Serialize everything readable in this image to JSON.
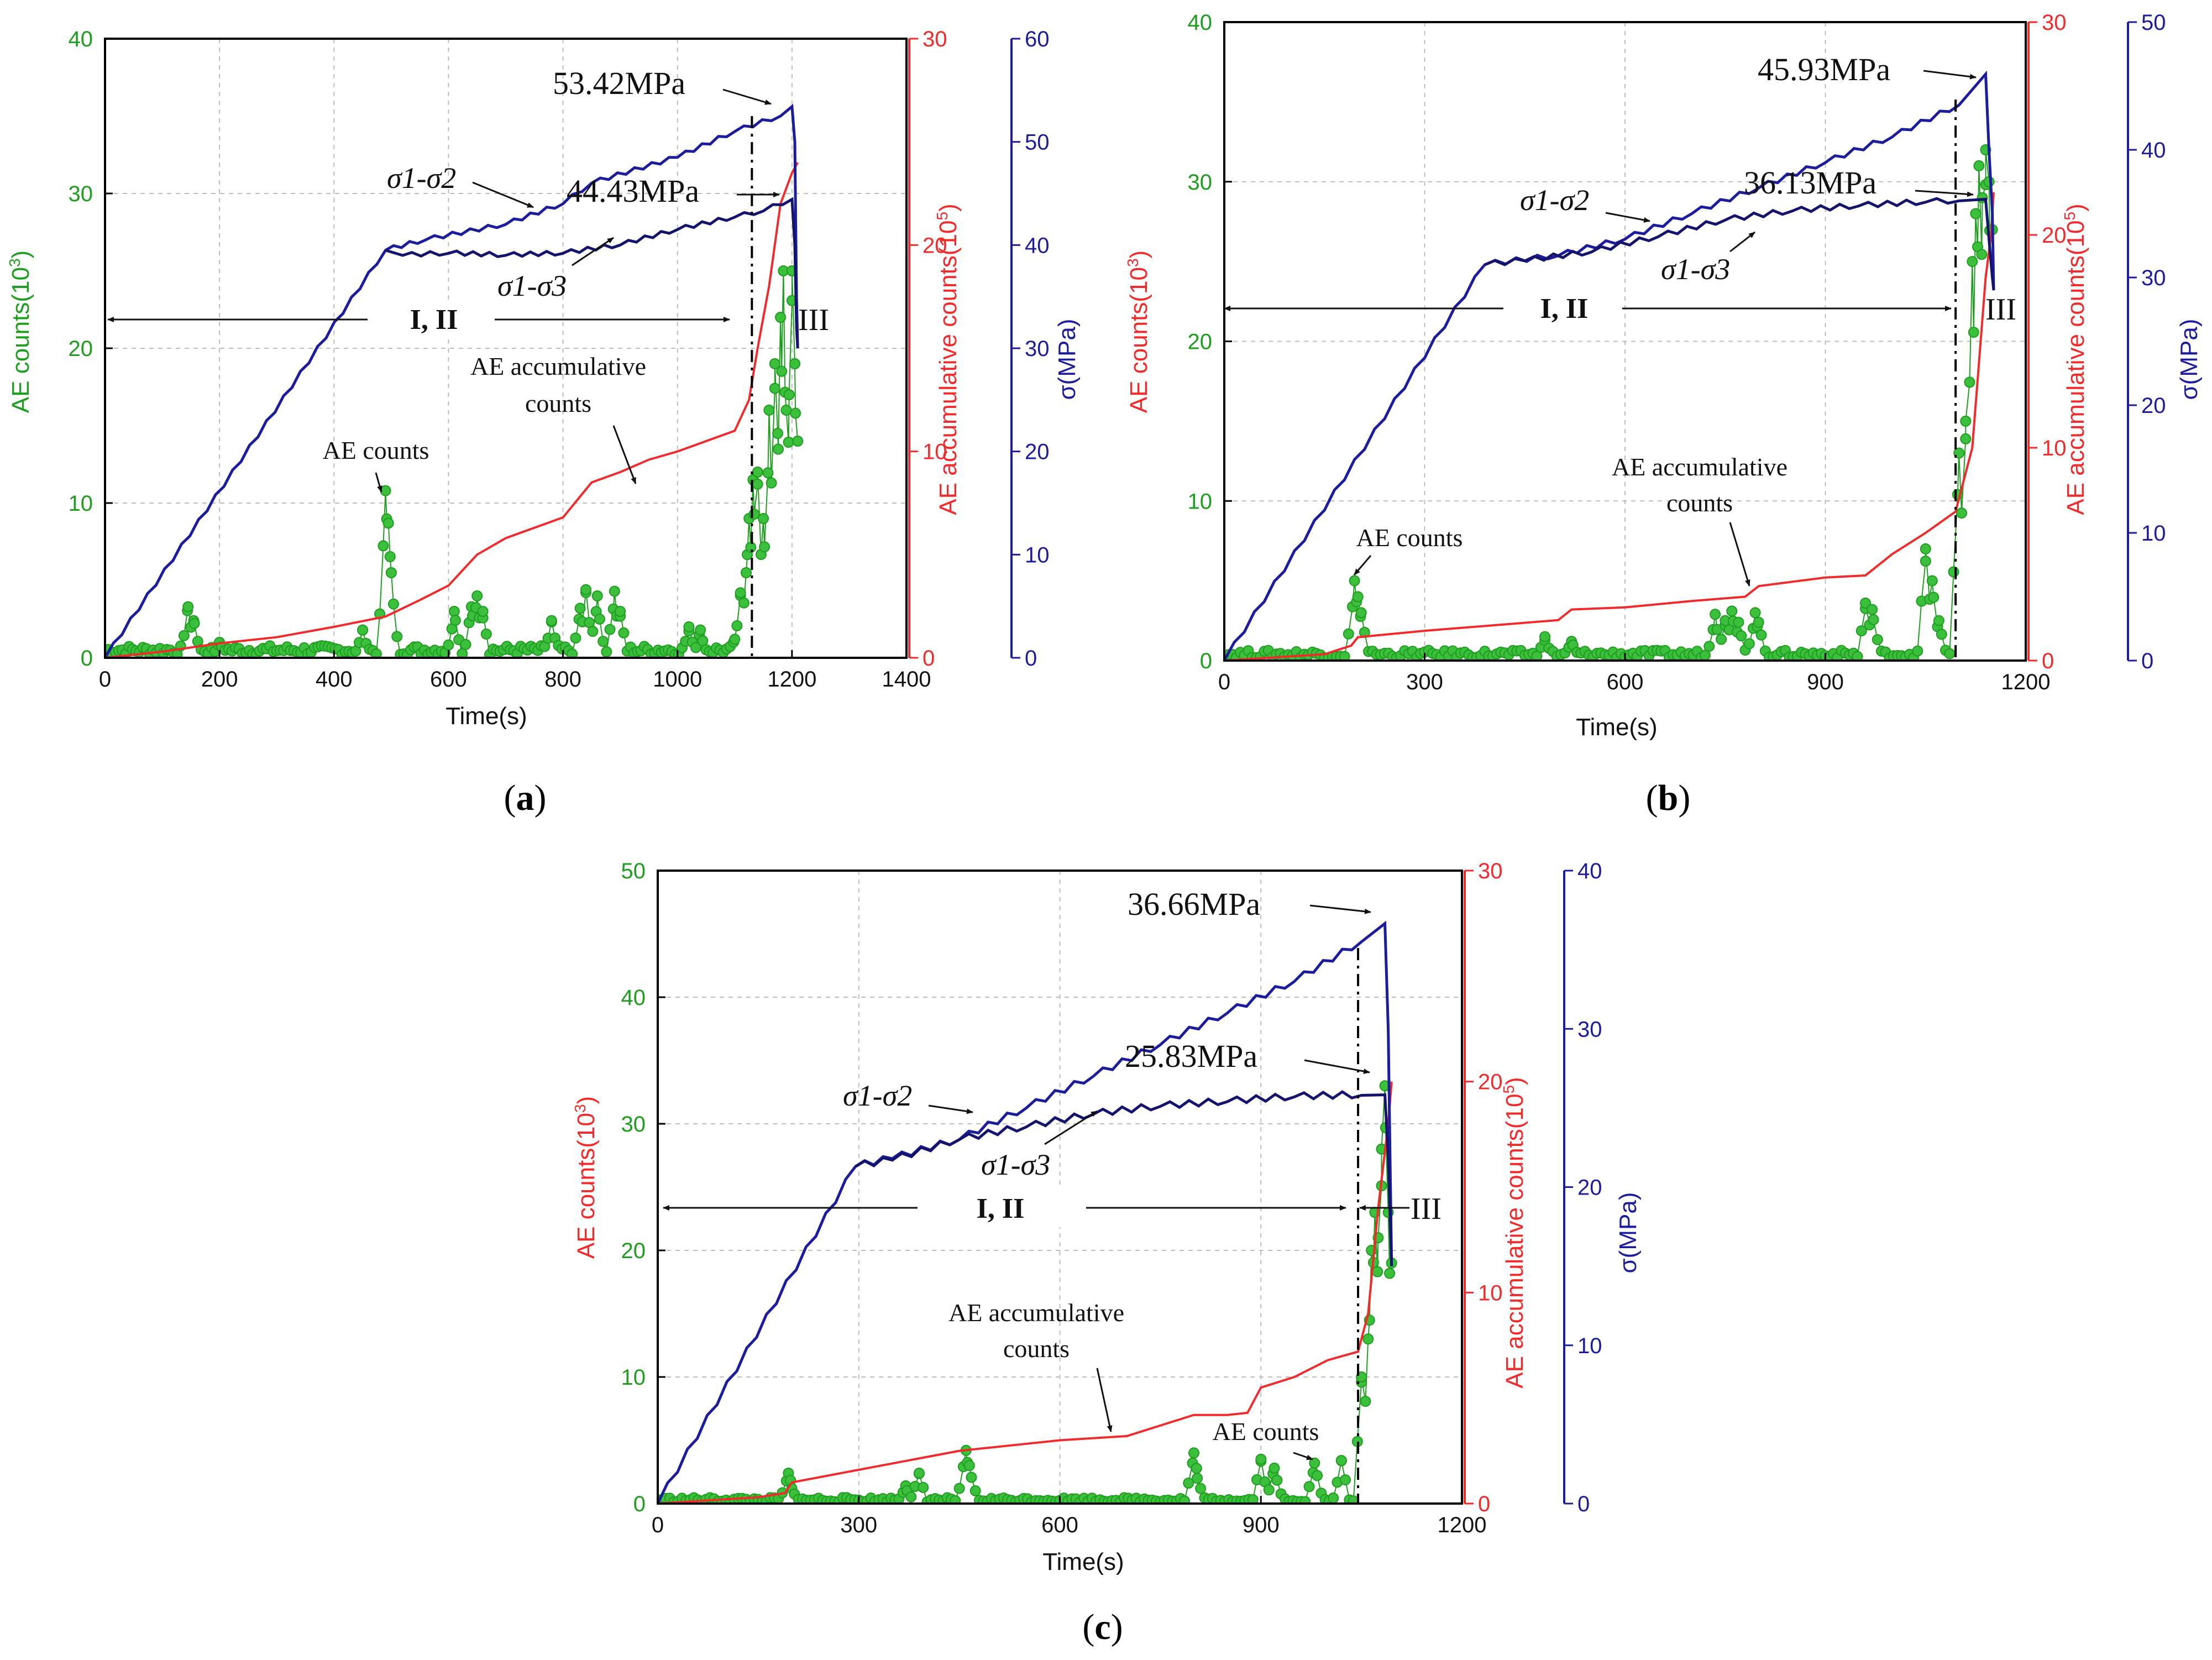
{
  "colors": {
    "ae_counts": "#1e9e1e",
    "ae_counts_fill": "#3cbf3c",
    "ae_accum": "#ef2b2b",
    "stress": "#1c1c9c",
    "stress_dark": "#14146e",
    "frame": "#000000",
    "grid": "#bdbdbd"
  },
  "chart_data": [
    {
      "id": "a",
      "type": "line",
      "caption_letter": "a",
      "xlabel": "Time(s)",
      "ylabel_left": "AE counts(10",
      "ylabel_left_color": "#1e9e1e",
      "ylabel_mid": "AE accumulative counts(10",
      "ylabel_right": "σ(MPa)",
      "x_ticks": [
        "0",
        "200",
        "400",
        "600",
        "800",
        "1000",
        "1200",
        "1400"
      ],
      "xlim": [
        0,
        1400
      ],
      "ylim_left": [
        0,
        40
      ],
      "yticks_left": [
        "0",
        "10",
        "20",
        "30",
        "40"
      ],
      "ylim_mid": [
        0,
        30
      ],
      "yticks_mid": [
        "0",
        "10",
        "20",
        "30"
      ],
      "ylim_right": [
        0,
        60
      ],
      "yticks_right": [
        "0",
        "10",
        "20",
        "30",
        "40",
        "50",
        "60"
      ],
      "divider_x": 1130,
      "phase_label_1": "I, II",
      "phase_label_2": "III",
      "peak1_label": "53.42MPa",
      "peak2_label": "44.43MPa",
      "label_s12": "σ1-σ2",
      "label_s13": "σ1-σ3",
      "label_accum_1": "AE accumulative",
      "label_accum_2": "counts",
      "label_counts": "AE counts",
      "series": [
        {
          "name": "σ1-σ2",
          "axis": "right",
          "x": [
            0,
            490,
            560,
            700,
            800,
            850,
            1000,
            1100,
            1180,
            1200,
            1205,
            1208,
            1210
          ],
          "y": [
            0,
            39.5,
            40.5,
            42,
            44,
            46,
            48.5,
            51,
            52.5,
            53.42,
            50,
            35,
            30
          ]
        },
        {
          "name": "σ1-σ3",
          "axis": "right",
          "x": [
            490,
            520,
            600,
            700,
            800,
            900,
            1000,
            1100,
            1150,
            1200,
            1205,
            1208,
            1210
          ],
          "y": [
            39.5,
            39,
            39.2,
            39,
            39.2,
            40,
            41.5,
            42.7,
            43.3,
            44.43,
            40,
            32,
            30
          ]
        },
        {
          "name": "AE accumulative counts",
          "axis": "mid",
          "x": [
            0,
            100,
            200,
            300,
            400,
            490,
            550,
            600,
            650,
            700,
            800,
            850,
            900,
            950,
            1000,
            1050,
            1100,
            1125,
            1140,
            1160,
            1180,
            1200,
            1210
          ],
          "y": [
            0,
            0.3,
            0.7,
            1,
            1.5,
            2,
            2.8,
            3.5,
            5,
            5.8,
            6.8,
            8.5,
            9,
            9.6,
            10,
            10.5,
            11,
            12.5,
            15,
            18,
            22,
            23.5,
            24
          ]
        },
        {
          "name": "AE counts",
          "axis": "left",
          "base": 0.5,
          "range": [
            0,
            1210
          ],
          "peaks": [
            [
              145,
              3.3
            ],
            [
              155,
              2.4
            ],
            [
              200,
              1
            ],
            [
              450,
              1.8
            ],
            [
              490,
              10.8
            ],
            [
              495,
              8.7
            ],
            [
              500,
              5.5
            ],
            [
              610,
              3
            ],
            [
              640,
              3.3
            ],
            [
              650,
              4
            ],
            [
              660,
              3
            ],
            [
              780,
              2.4
            ],
            [
              830,
              3.2
            ],
            [
              840,
              4.4
            ],
            [
              860,
              4
            ],
            [
              890,
              4.3
            ],
            [
              900,
              3
            ],
            [
              1020,
              2
            ],
            [
              1040,
              1.8
            ],
            [
              1100,
              1.2
            ],
            [
              1110,
              4.2
            ],
            [
              1120,
              5.5
            ],
            [
              1125,
              9
            ],
            [
              1132,
              11.5
            ],
            [
              1140,
              12
            ],
            [
              1150,
              9
            ],
            [
              1160,
              16
            ],
            [
              1170,
              19
            ],
            [
              1175,
              14.5
            ],
            [
              1180,
              22
            ],
            [
              1185,
              25
            ],
            [
              1190,
              16
            ],
            [
              1195,
              17
            ],
            [
              1200,
              25
            ],
            [
              1205,
              19
            ],
            [
              1210,
              14
            ]
          ]
        }
      ]
    },
    {
      "id": "b",
      "type": "line",
      "caption_letter": "b",
      "xlabel": "Time(s)",
      "ylabel_left": "AE counts(10",
      "ylabel_left_color": "#ef2b2b",
      "ylabel_mid": "AE accumulative counts(10",
      "ylabel_right": "σ(MPa)",
      "x_ticks": [
        "0",
        "300",
        "600",
        "900",
        "1200"
      ],
      "xlim": [
        0,
        1200
      ],
      "ylim_left": [
        0,
        40
      ],
      "yticks_left": [
        "0",
        "10",
        "20",
        "30",
        "40"
      ],
      "ylim_mid": [
        0,
        30
      ],
      "yticks_mid": [
        "0",
        "10",
        "20",
        "30"
      ],
      "ylim_right": [
        0,
        50
      ],
      "yticks_right": [
        "0",
        "10",
        "20",
        "30",
        "40",
        "50"
      ],
      "divider_x": 1095,
      "phase_label_1": "I, II",
      "phase_label_2": "III",
      "peak1_label": "45.93MPa",
      "peak2_label": "36.13MPa",
      "label_s12": "σ1-σ2",
      "label_s13": "σ1-σ3",
      "label_accum_1": "AE accumulative",
      "label_accum_2": "counts",
      "label_counts": "AE counts",
      "series": [
        {
          "name": "σ1-σ2",
          "axis": "right",
          "x": [
            0,
            390,
            500,
            600,
            700,
            800,
            900,
            1000,
            1100,
            1140,
            1145,
            1150,
            1152
          ],
          "y": [
            0,
            31,
            31.7,
            33,
            35,
            37,
            39,
            41,
            43.5,
            45.93,
            40,
            35,
            29
          ]
        },
        {
          "name": "σ1-σ3",
          "axis": "right",
          "x": [
            390,
            450,
            550,
            650,
            750,
            850,
            950,
            1050,
            1100,
            1140,
            1145,
            1150,
            1152
          ],
          "y": [
            31,
            31.3,
            32,
            33.2,
            34.5,
            35.2,
            35.6,
            35.9,
            36,
            36.13,
            33,
            30,
            29
          ]
        },
        {
          "name": "AE accumulative counts",
          "axis": "mid",
          "x": [
            0,
            150,
            190,
            200,
            300,
            500,
            520,
            600,
            700,
            780,
            800,
            900,
            960,
            1000,
            1050,
            1095,
            1120,
            1130,
            1140,
            1148,
            1152
          ],
          "y": [
            0,
            0.3,
            0.7,
            1.1,
            1.4,
            1.9,
            2.4,
            2.5,
            2.8,
            3,
            3.5,
            3.9,
            4,
            5,
            6,
            7,
            10,
            14,
            18,
            20,
            22
          ]
        },
        {
          "name": "AE counts",
          "axis": "left",
          "base": 0.4,
          "range": [
            0,
            1150
          ],
          "peaks": [
            [
              195,
              5
            ],
            [
              200,
              4
            ],
            [
              205,
              3
            ],
            [
              480,
              1.5
            ],
            [
              520,
              1.2
            ],
            [
              735,
              2.9
            ],
            [
              750,
              2.5
            ],
            [
              760,
              3.1
            ],
            [
              770,
              2.4
            ],
            [
              795,
              3
            ],
            [
              800,
              2.4
            ],
            [
              960,
              3.6
            ],
            [
              970,
              3.2
            ],
            [
              1050,
              7
            ],
            [
              1060,
              5
            ],
            [
              1070,
              2.5
            ],
            [
              1100,
              13
            ],
            [
              1110,
              15
            ],
            [
              1120,
              25
            ],
            [
              1125,
              28
            ],
            [
              1130,
              31
            ],
            [
              1135,
              29
            ],
            [
              1140,
              32
            ],
            [
              1145,
              30
            ],
            [
              1150,
              27
            ]
          ]
        }
      ]
    },
    {
      "id": "c",
      "type": "line",
      "caption_letter": "c",
      "xlabel": "Time(s)",
      "ylabel_left": "AE counts(10",
      "ylabel_left_color": "#ef2b2b",
      "ylabel_mid": "AE accumulative counts(10",
      "ylabel_right": "σ(MPa)",
      "x_ticks": [
        "0",
        "300",
        "600",
        "900",
        "1200"
      ],
      "xlim": [
        0,
        1200
      ],
      "ylim_left": [
        0,
        50
      ],
      "yticks_left": [
        "0",
        "10",
        "20",
        "30",
        "40",
        "50"
      ],
      "ylim_mid": [
        0,
        30
      ],
      "yticks_mid": [
        "0",
        "10",
        "20",
        "30"
      ],
      "ylim_right": [
        0,
        40
      ],
      "yticks_right": [
        "0",
        "10",
        "20",
        "30",
        "40"
      ],
      "divider_x": 1045,
      "phase_label_1": "I, II",
      "phase_label_2": "III",
      "peak1_label": "36.66MPa",
      "peak2_label": "25.83MPa",
      "label_s12": "σ1-σ2",
      "label_s13": "σ1-σ3",
      "label_accum_1": "AE accumulative",
      "label_accum_2": "counts",
      "label_counts": "AE counts",
      "series": [
        {
          "name": "σ1-σ2",
          "axis": "right",
          "x": [
            0,
            295,
            350,
            450,
            550,
            650,
            750,
            850,
            950,
            1050,
            1085,
            1090,
            1095
          ],
          "y": [
            0,
            21.3,
            21.8,
            23,
            25,
            27,
            29,
            31,
            33,
            35.5,
            36.66,
            30,
            15
          ]
        },
        {
          "name": "σ1-σ3",
          "axis": "right",
          "x": [
            295,
            350,
            450,
            550,
            650,
            750,
            850,
            950,
            1050,
            1085,
            1090,
            1095
          ],
          "y": [
            21.3,
            21.7,
            23,
            23.8,
            24.6,
            25.1,
            25.4,
            25.7,
            25.8,
            25.83,
            22,
            15
          ]
        },
        {
          "name": "AE accumulative counts",
          "axis": "mid",
          "x": [
            0,
            150,
            190,
            200,
            300,
            450,
            600,
            700,
            800,
            850,
            880,
            900,
            950,
            1000,
            1045,
            1060,
            1075,
            1090,
            1095
          ],
          "y": [
            0,
            0.3,
            0.5,
            1,
            1.6,
            2.5,
            3,
            3.2,
            4.2,
            4.2,
            4.3,
            5.5,
            6,
            6.8,
            7.2,
            9,
            14,
            18,
            20
          ]
        },
        {
          "name": "AE counts",
          "axis": "left",
          "base": 0.3,
          "range": [
            0,
            1095
          ],
          "peaks": [
            [
              195,
              2.4
            ],
            [
              200,
              1.2
            ],
            [
              370,
              1.4
            ],
            [
              390,
              2.4
            ],
            [
              460,
              4.2
            ],
            [
              465,
              3
            ],
            [
              800,
              4
            ],
            [
              805,
              2
            ],
            [
              900,
              3.5
            ],
            [
              920,
              2.8
            ],
            [
              980,
              3.2
            ],
            [
              1020,
              3.4
            ],
            [
              1050,
              10
            ],
            [
              1060,
              13
            ],
            [
              1065,
              20
            ],
            [
              1070,
              23
            ],
            [
              1075,
              21
            ],
            [
              1080,
              28
            ],
            [
              1085,
              33
            ],
            [
              1090,
              23
            ],
            [
              1095,
              19
            ]
          ]
        }
      ]
    }
  ]
}
